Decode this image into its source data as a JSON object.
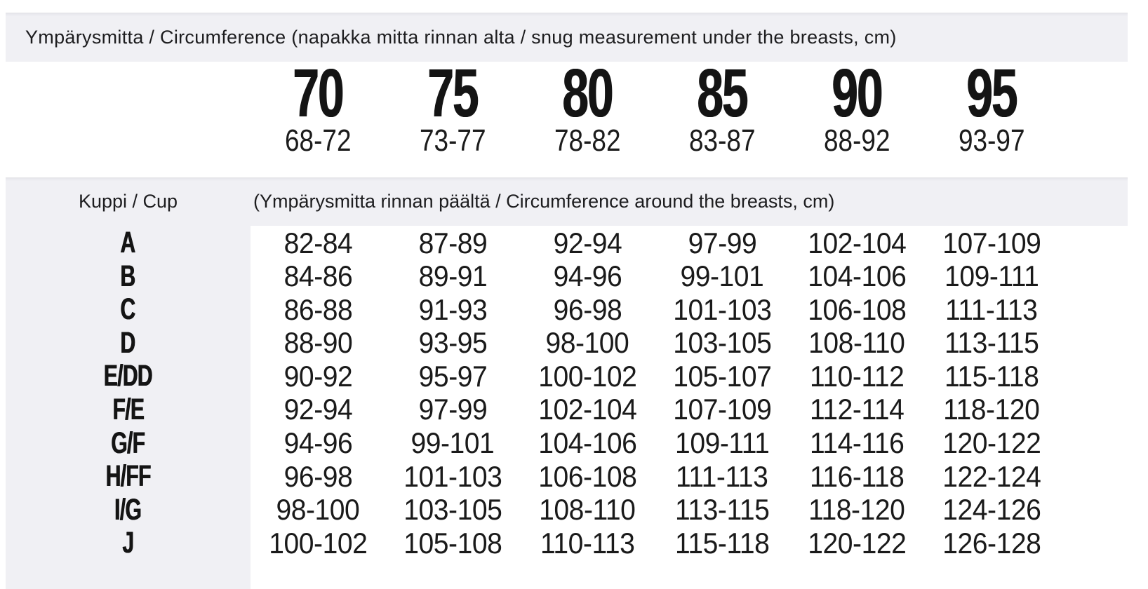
{
  "colors": {
    "band_background": "#f0f0f4",
    "text": "#1c1c1c"
  },
  "circumference_header": {
    "title": "Ympärysmitta / Circumference (napakka mitta rinnan alta / snug measurement under the breasts, cm)"
  },
  "band_sizes": [
    {
      "size": "70",
      "range": "68-72"
    },
    {
      "size": "75",
      "range": "73-77"
    },
    {
      "size": "80",
      "range": "78-82"
    },
    {
      "size": "85",
      "range": "83-87"
    },
    {
      "size": "90",
      "range": "88-92"
    },
    {
      "size": "95",
      "range": "93-97"
    }
  ],
  "cup_header": {
    "label": "Kuppi / Cup",
    "subtitle": "(Ympärysmitta rinnan päältä / Circumference around the breasts, cm)"
  },
  "cup_rows": [
    {
      "cup": "A",
      "values": [
        "82-84",
        "87-89",
        "92-94",
        "97-99",
        "102-104",
        "107-109"
      ]
    },
    {
      "cup": "B",
      "values": [
        "84-86",
        "89-91",
        "94-96",
        "99-101",
        "104-106",
        "109-111"
      ]
    },
    {
      "cup": "C",
      "values": [
        "86-88",
        "91-93",
        "96-98",
        "101-103",
        "106-108",
        "111-113"
      ]
    },
    {
      "cup": "D",
      "values": [
        "88-90",
        "93-95",
        "98-100",
        "103-105",
        "108-110",
        "113-115"
      ]
    },
    {
      "cup": "E/DD",
      "values": [
        "90-92",
        "95-97",
        "100-102",
        "105-107",
        "110-112",
        "115-118"
      ]
    },
    {
      "cup": "F/E",
      "values": [
        "92-94",
        "97-99",
        "102-104",
        "107-109",
        "112-114",
        "118-120"
      ]
    },
    {
      "cup": "G/F",
      "values": [
        "94-96",
        "99-101",
        "104-106",
        "109-111",
        "114-116",
        "120-122"
      ]
    },
    {
      "cup": "H/FF",
      "values": [
        "96-98",
        "101-103",
        "106-108",
        "111-113",
        "116-118",
        "122-124"
      ]
    },
    {
      "cup": "I/G",
      "values": [
        "98-100",
        "103-105",
        "108-110",
        "113-115",
        "118-120",
        "124-126"
      ]
    },
    {
      "cup": "J",
      "values": [
        "100-102",
        "105-108",
        "110-113",
        "115-118",
        "120-122",
        "126-128"
      ]
    }
  ]
}
